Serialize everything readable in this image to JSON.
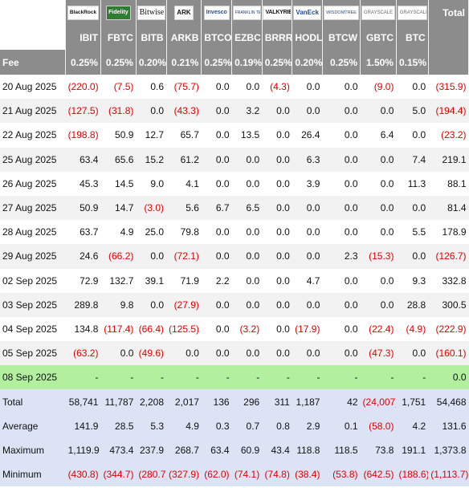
{
  "header": {
    "total_label": "Total",
    "fee_label": "Fee"
  },
  "funds": [
    {
      "ticker": "IBIT",
      "issuer": "BlackRock",
      "logo_icon": "blackrock-logo",
      "fee": "0.25%"
    },
    {
      "ticker": "FBTC",
      "issuer": "Fidelity",
      "logo_icon": "fidelity-logo",
      "fee": "0.25%"
    },
    {
      "ticker": "BITB",
      "issuer": "Bitwise",
      "logo_icon": "bitwise-logo",
      "fee": "0.20%"
    },
    {
      "ticker": "ARKB",
      "issuer": "ARK",
      "logo_icon": "ark-logo",
      "fee": "0.21%"
    },
    {
      "ticker": "BTCO",
      "issuer": "Invesco",
      "logo_icon": "invesco-logo",
      "fee": "0.25%"
    },
    {
      "ticker": "EZBC",
      "issuer": "FRANKLIN TEMPLETON",
      "logo_icon": "franklin-templeton-logo",
      "fee": "0.19%"
    },
    {
      "ticker": "BRRR",
      "issuer": "VALKYRIE",
      "logo_icon": "valkyrie-logo",
      "fee": "0.25%"
    },
    {
      "ticker": "HODL",
      "issuer": "VanEck",
      "logo_icon": "vaneck-logo",
      "fee": "0.20%"
    },
    {
      "ticker": "BTCW",
      "issuer": "WISDOMTREE",
      "logo_icon": "wisdomtree-logo",
      "fee": "0.25%"
    },
    {
      "ticker": "GBTC",
      "issuer": "GRAYSCALE",
      "logo_icon": "grayscale-logo",
      "fee": "1.50%"
    },
    {
      "ticker": "BTC",
      "issuer": "GRAYSCALE",
      "logo_icon": "grayscale-logo",
      "fee": "0.15%"
    }
  ],
  "rows": [
    {
      "date": "20 Aug 2025",
      "values": [
        "(220.0)",
        "(7.5)",
        "0.6",
        "(75.7)",
        "0.0",
        "0.0",
        "(4.3)",
        "0.0",
        "0.0",
        "(9.0)",
        "0.0"
      ],
      "total": "(315.9)"
    },
    {
      "date": "21 Aug 2025",
      "values": [
        "(127.5)",
        "(31.8)",
        "0.0",
        "(43.3)",
        "0.0",
        "3.2",
        "0.0",
        "0.0",
        "0.0",
        "0.0",
        "5.0"
      ],
      "total": "(194.4)"
    },
    {
      "date": "22 Aug 2025",
      "values": [
        "(198.8)",
        "50.9",
        "12.7",
        "65.7",
        "0.0",
        "13.5",
        "0.0",
        "26.4",
        "0.0",
        "6.4",
        "0.0"
      ],
      "total": "(23.2)"
    },
    {
      "date": "25 Aug 2025",
      "values": [
        "63.4",
        "65.6",
        "15.2",
        "61.2",
        "0.0",
        "0.0",
        "0.0",
        "6.3",
        "0.0",
        "0.0",
        "7.4"
      ],
      "total": "219.1"
    },
    {
      "date": "26 Aug 2025",
      "values": [
        "45.3",
        "14.5",
        "9.0",
        "4.1",
        "0.0",
        "0.0",
        "0.0",
        "3.9",
        "0.0",
        "0.0",
        "11.3"
      ],
      "total": "88.1"
    },
    {
      "date": "27 Aug 2025",
      "values": [
        "50.9",
        "14.7",
        "(3.0)",
        "5.6",
        "6.7",
        "6.5",
        "0.0",
        "0.0",
        "0.0",
        "0.0",
        "0.0"
      ],
      "total": "81.4"
    },
    {
      "date": "28 Aug 2025",
      "values": [
        "63.7",
        "4.9",
        "25.0",
        "79.8",
        "0.0",
        "0.0",
        "0.0",
        "0.0",
        "0.0",
        "0.0",
        "5.5"
      ],
      "total": "178.9"
    },
    {
      "date": "29 Aug 2025",
      "values": [
        "24.6",
        "(66.2)",
        "0.0",
        "(72.1)",
        "0.0",
        "0.0",
        "0.0",
        "0.0",
        "2.3",
        "(15.3)",
        "0.0"
      ],
      "total": "(126.7)"
    },
    {
      "date": "02 Sep 2025",
      "values": [
        "72.9",
        "132.7",
        "39.1",
        "71.9",
        "2.2",
        "0.0",
        "0.0",
        "4.7",
        "0.0",
        "0.0",
        "9.3"
      ],
      "total": "332.8"
    },
    {
      "date": "03 Sep 2025",
      "values": [
        "289.8",
        "9.8",
        "0.0",
        "(27.9)",
        "0.0",
        "0.0",
        "0.0",
        "0.0",
        "0.0",
        "0.0",
        "28.8"
      ],
      "total": "300.5"
    },
    {
      "date": "04 Sep 2025",
      "values": [
        "134.8",
        "(117.4)",
        "(66.4)",
        "(125.5)",
        "0.0",
        "(3.2)",
        "0.0",
        "(17.9)",
        "0.0",
        "(22.4)",
        "(4.9)"
      ],
      "total": "(222.9)"
    },
    {
      "date": "05 Sep 2025",
      "values": [
        "(63.2)",
        "0.0",
        "(49.6)",
        "0.0",
        "0.0",
        "0.0",
        "0.0",
        "0.0",
        "0.0",
        "(47.3)",
        "0.0"
      ],
      "total": "(160.1)"
    },
    {
      "date": "08 Sep 2025",
      "values": [
        "-",
        "-",
        "-",
        "-",
        "-",
        "-",
        "-",
        "-",
        "-",
        "-",
        "-"
      ],
      "total": "0.0",
      "highlight": true
    }
  ],
  "stats": [
    {
      "label": "Total",
      "values": [
        "58,741",
        "11,787",
        "2,208",
        "2,017",
        "136",
        "296",
        "311",
        "1,187",
        "42",
        "(24,007)",
        "1,751"
      ],
      "total": "54,468"
    },
    {
      "label": "Average",
      "values": [
        "141.9",
        "28.5",
        "5.3",
        "4.9",
        "0.3",
        "0.7",
        "0.8",
        "2.9",
        "0.1",
        "(58.0)",
        "4.2"
      ],
      "total": "131.6"
    },
    {
      "label": "Maximum",
      "values": [
        "1,119.9",
        "473.4",
        "237.9",
        "268.7",
        "63.4",
        "60.9",
        "43.4",
        "118.8",
        "118.5",
        "73.8",
        "191.1"
      ],
      "total": "1,373.8"
    },
    {
      "label": "Minimum",
      "values": [
        "(430.8)",
        "(344.7)",
        "(280.7)",
        "(327.9)",
        "(62.0)",
        "(74.1)",
        "(74.8)",
        "(38.4)",
        "(53.8)",
        "(642.5)",
        "(188.6)"
      ],
      "total": "(1,113.7)"
    }
  ],
  "colors": {
    "header_bg": "#8c8c8c",
    "row_alt_bg": "#f2f2f2",
    "highlight_bg": "#b2f0a0",
    "stats_bg": "#dbe3f5",
    "negative": "#e00000"
  }
}
